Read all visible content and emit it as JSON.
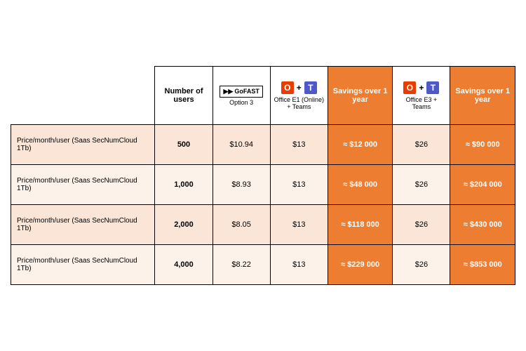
{
  "colors": {
    "savings_bg": "#ed7d31",
    "row_alt1": "#fbe5d6",
    "row_alt2": "#fdf2ea",
    "office_orange": "#eb3c00",
    "teams_purple": "#5059c9",
    "border": "#000000"
  },
  "headers": {
    "num_users": "Number of users",
    "gofast": {
      "brand": "GoFAST",
      "sub": "Option 3"
    },
    "office_e1": {
      "sub": "Office E1 (Online) + Teams"
    },
    "savings1": "Savings over 1 year",
    "office_e3": {
      "sub": "Office E3 + Teams"
    },
    "savings2": "Savings over 1 year"
  },
  "row_label": "Price/month/user (Saas SecNumCloud 1Tb)",
  "rows": [
    {
      "users": "500",
      "gofast": "$10.94",
      "e1": "$13",
      "s1": "≈ $12 000",
      "e3": "$26",
      "s2": "≈ $90 000"
    },
    {
      "users": "1,000",
      "gofast": "$8.93",
      "e1": "$13",
      "s1": "≈ $48 000",
      "e3": "$26",
      "s2": "≈ $204 000"
    },
    {
      "users": "2,000",
      "gofast": "$8.05",
      "e1": "$13",
      "s1": "≈ $118 000",
      "e3": "$26",
      "s2": "≈ $430 000"
    },
    {
      "users": "4,000",
      "gofast": "$8.22",
      "e1": "$13",
      "s1": "≈ $229 000",
      "e3": "$26",
      "s2": "≈ $853 000"
    }
  ],
  "col_widths": [
    "200px",
    "80px",
    "80px",
    "80px",
    "90px",
    "80px",
    "90px"
  ],
  "icons": {
    "office_letter": "O",
    "teams_letter": "T",
    "plus": "+"
  }
}
